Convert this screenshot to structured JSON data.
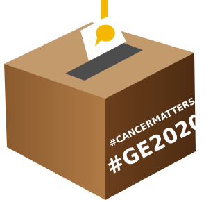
{
  "box": {
    "hashtag": "#CANCERMATTERS",
    "title": "#GE2020"
  }
}
